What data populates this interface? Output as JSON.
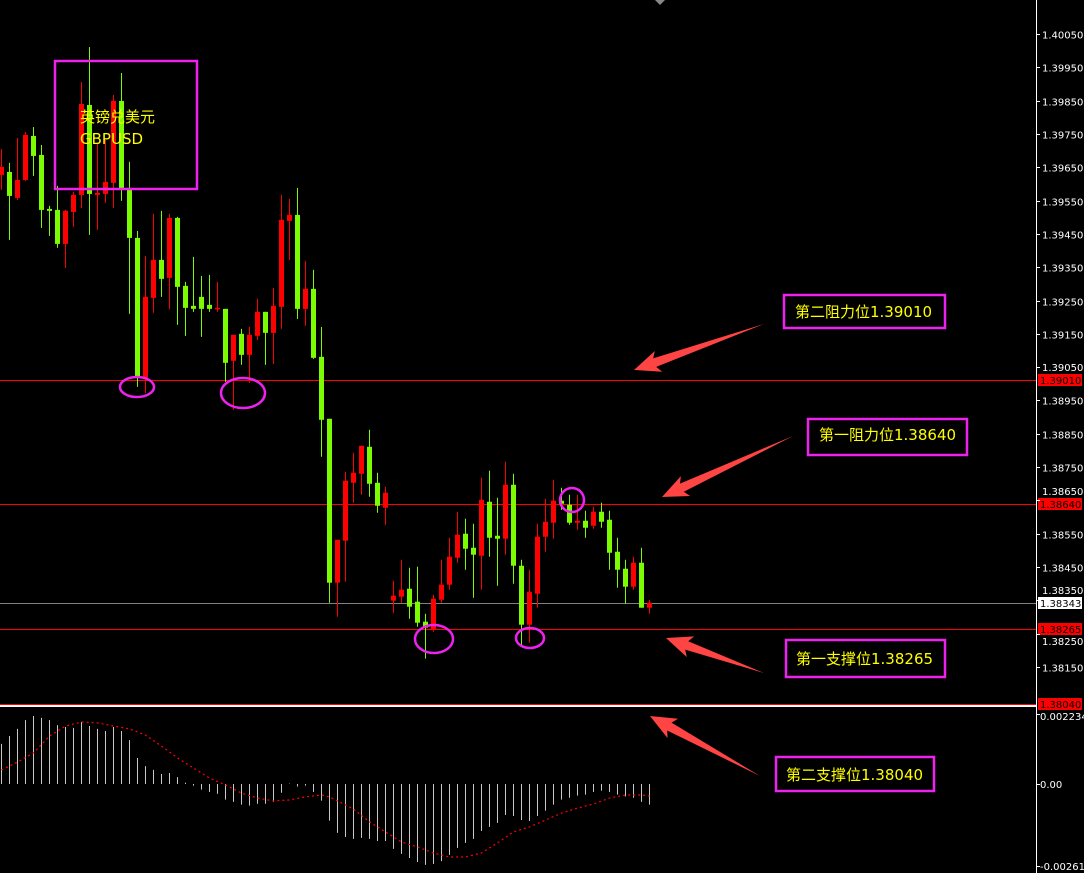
{
  "symbol": {
    "name_cn": "英镑兑美元",
    "ticker": "GBPUSD"
  },
  "colors": {
    "background": "#000000",
    "bull_candle": "#ff0000",
    "bear_candle": "#7cfc00",
    "annotation_box": "#ee22ee",
    "annotation_text": "#ffff00",
    "arrow": "#ff4444",
    "level_line": "#ff0000",
    "current_price_line": "#808080",
    "macd_histogram": "#c8c8c8",
    "macd_signal": "#ff0000"
  },
  "annotations": [
    {
      "text": "第二阻力位1.39010",
      "level": 1.3901
    },
    {
      "text": "第一阻力位1.38640",
      "level": 1.3864
    },
    {
      "text": "第一支撑位1.38265",
      "level": 1.38265
    },
    {
      "text": "第二支撑位1.38040",
      "level": 1.3804
    }
  ],
  "chart_data": [
    {
      "type": "candlestick",
      "title": "",
      "grid": false,
      "ylim": [
        1.3804,
        1.4007
      ],
      "y_ticks": [
        "1.40050",
        "1.39950",
        "1.39850",
        "1.39750",
        "1.39650",
        "1.39550",
        "1.39450",
        "1.39350",
        "1.39250",
        "1.39150",
        "1.39050",
        "1.38950",
        "1.38850",
        "1.38750",
        "1.38650",
        "1.38550",
        "1.38450",
        "1.38350",
        "1.38250",
        "1.38150"
      ],
      "price_tags": [
        {
          "value": "1.39010",
          "style": "level"
        },
        {
          "value": "1.38640",
          "style": "level"
        },
        {
          "value": "1.38343",
          "style": "current"
        },
        {
          "value": "1.38265",
          "style": "level"
        },
        {
          "value": "1.38040",
          "style": "level"
        }
      ],
      "horizontal_lines": [
        {
          "price": 1.3901,
          "kind": "level"
        },
        {
          "price": 1.3864,
          "kind": "level"
        },
        {
          "price": 1.38343,
          "kind": "current"
        },
        {
          "price": 1.38265,
          "kind": "level"
        },
        {
          "price": 1.3804,
          "kind": "level"
        }
      ],
      "ohlc_fields": [
        "open",
        "high",
        "low",
        "close"
      ],
      "ohlc": [
        [
          1.39627,
          1.39705,
          1.39582,
          1.39651
        ],
        [
          1.39636,
          1.39663,
          1.39432,
          1.39564
        ],
        [
          1.39558,
          1.39738,
          1.39552,
          1.39612
        ],
        [
          1.39612,
          1.39756,
          1.39609,
          1.39747
        ],
        [
          1.39744,
          1.39771,
          1.39624,
          1.39684
        ],
        [
          1.39687,
          1.39717,
          1.39468,
          1.39522
        ],
        [
          1.39525,
          1.39534,
          1.39444,
          1.39519
        ],
        [
          1.39522,
          1.39594,
          1.39408,
          1.3942
        ],
        [
          1.3942,
          1.39522,
          1.39348,
          1.39519
        ],
        [
          1.39516,
          1.39576,
          1.39471,
          1.39567
        ],
        [
          1.39567,
          1.39906,
          1.39528,
          1.3984
        ],
        [
          1.39837,
          1.40011,
          1.39447,
          1.3957
        ],
        [
          1.39567,
          1.39723,
          1.39462,
          1.39573
        ],
        [
          1.3957,
          1.39732,
          1.39543,
          1.39606
        ],
        [
          1.39603,
          1.39867,
          1.39528,
          1.39849
        ],
        [
          1.39849,
          1.39933,
          1.39549,
          1.39588
        ],
        [
          1.39588,
          1.39666,
          1.3921,
          1.39438
        ],
        [
          1.39438,
          1.39459,
          1.38991,
          1.39021
        ],
        [
          1.39018,
          1.39384,
          1.38973,
          1.39261
        ],
        [
          1.39258,
          1.3951,
          1.39213,
          1.39372
        ],
        [
          1.39372,
          1.39519,
          1.39261,
          1.39315
        ],
        [
          1.39318,
          1.3951,
          1.39225,
          1.39498
        ],
        [
          1.39498,
          1.39501,
          1.39177,
          1.39291
        ],
        [
          1.39294,
          1.39306,
          1.39144,
          1.39228
        ],
        [
          1.39234,
          1.39381,
          1.39216,
          1.39225
        ],
        [
          1.39261,
          1.39324,
          1.39141,
          1.39225
        ],
        [
          1.39237,
          1.39327,
          1.39216,
          1.39225
        ],
        [
          1.39225,
          1.39306,
          1.39216,
          1.39228
        ],
        [
          1.39225,
          1.39225,
          1.39006,
          1.39063
        ],
        [
          1.39069,
          1.39147,
          1.38922,
          1.39147
        ],
        [
          1.3915,
          1.39165,
          1.39057,
          1.39087
        ],
        [
          1.39087,
          1.39171,
          1.39003,
          1.39147
        ],
        [
          1.39144,
          1.39255,
          1.39132,
          1.39216
        ],
        [
          1.39216,
          1.39216,
          1.39057,
          1.39153
        ],
        [
          1.39153,
          1.39288,
          1.3906,
          1.39234
        ],
        [
          1.39231,
          1.39567,
          1.39165,
          1.39492
        ],
        [
          1.39489,
          1.39555,
          1.39372,
          1.39507
        ],
        [
          1.39507,
          1.39588,
          1.39195,
          1.39225
        ],
        [
          1.39225,
          1.39369,
          1.39174,
          1.39285
        ],
        [
          1.39285,
          1.39342,
          1.39075,
          1.39078
        ],
        [
          1.39081,
          1.39171,
          1.38781,
          1.38892
        ],
        [
          1.38895,
          1.38895,
          1.38343,
          1.38403
        ],
        [
          1.38403,
          1.38532,
          1.38301,
          1.38532
        ],
        [
          1.38529,
          1.38736,
          1.38406,
          1.38709
        ],
        [
          1.38703,
          1.38793,
          1.38643,
          1.38733
        ],
        [
          1.3873,
          1.38814,
          1.38667,
          1.38814
        ],
        [
          1.38811,
          1.38862,
          1.38661,
          1.387
        ],
        [
          1.38703,
          1.38733,
          1.38613,
          1.38634
        ],
        [
          1.38628,
          1.38691,
          1.38577,
          1.38673
        ],
        [
          1.38349,
          1.38409,
          1.38313,
          1.38364
        ],
        [
          1.38361,
          1.38472,
          1.38343,
          1.38382
        ],
        [
          1.38385,
          1.38448,
          1.38295,
          1.38331
        ],
        [
          1.38346,
          1.38451,
          1.38271,
          1.38283
        ],
        [
          1.38286,
          1.3831,
          1.38175,
          1.38268
        ],
        [
          1.38262,
          1.38367,
          1.38256,
          1.38355
        ],
        [
          1.38352,
          1.38472,
          1.38343,
          1.38397
        ],
        [
          1.38397,
          1.38538,
          1.38382,
          1.38481
        ],
        [
          1.38478,
          1.38616,
          1.38463,
          1.38547
        ],
        [
          1.3855,
          1.38595,
          1.38442,
          1.38505
        ],
        [
          1.38508,
          1.3858,
          1.38358,
          1.38487
        ],
        [
          1.38484,
          1.38718,
          1.38382,
          1.38652
        ],
        [
          1.38646,
          1.38739,
          1.38481,
          1.38538
        ],
        [
          1.38544,
          1.38658,
          1.38394,
          1.38535
        ],
        [
          1.38535,
          1.38766,
          1.38487,
          1.38697
        ],
        [
          1.38697,
          1.3873,
          1.384,
          1.38454
        ],
        [
          1.38454,
          1.38472,
          1.38214,
          1.38277
        ],
        [
          1.38277,
          1.38442,
          1.38223,
          1.38376
        ],
        [
          1.3837,
          1.3858,
          1.38328,
          1.38541
        ],
        [
          1.38541,
          1.38655,
          1.38496,
          1.38586
        ],
        [
          1.38583,
          1.38712,
          1.38535,
          1.38649
        ],
        [
          1.38649,
          1.38688,
          1.38622,
          1.3864
        ],
        [
          1.38637,
          1.38667,
          1.38577,
          1.38583
        ],
        [
          1.38583,
          1.38667,
          1.38562,
          1.38589
        ],
        [
          1.38589,
          1.38619,
          1.38538,
          1.38568
        ],
        [
          1.38574,
          1.38631,
          1.38565,
          1.38616
        ],
        [
          1.38616,
          1.38643,
          1.38568,
          1.38586
        ],
        [
          1.38592,
          1.38619,
          1.38442,
          1.38493
        ],
        [
          1.38496,
          1.38538,
          1.38388,
          1.38442
        ],
        [
          1.38445,
          1.38472,
          1.3834,
          1.38391
        ],
        [
          1.38391,
          1.38481,
          1.38382,
          1.38463
        ],
        [
          1.38463,
          1.38508,
          1.38328,
          1.38328
        ],
        [
          1.38328,
          1.38352,
          1.3831,
          1.38343
        ]
      ]
    },
    {
      "type": "bar",
      "title": "",
      "grid": false,
      "ylim": [
        -0.00261,
        0.002234
      ],
      "y_ticks": [
        "0.002234",
        "0.00",
        "-0.00261"
      ],
      "histogram": [
        0.00128,
        0.00153,
        0.00176,
        0.00204,
        0.00217,
        0.00211,
        0.00204,
        0.00188,
        0.00182,
        0.00179,
        0.00198,
        0.00185,
        0.00176,
        0.00169,
        0.00182,
        0.00169,
        0.0014,
        0.00083,
        0.00057,
        0.00045,
        0.00032,
        0.00035,
        0.00022,
        4e-05,
        -5e-05,
        -0.00018,
        -0.00025,
        -0.00031,
        -0.0005,
        -0.00057,
        -0.00066,
        -0.00069,
        -0.00063,
        -0.00063,
        -0.00057,
        -0.00028,
        1e-05,
        -8e-05,
        -5e-05,
        -0.00025,
        -0.00053,
        -0.00117,
        -0.00156,
        -0.00169,
        -0.00175,
        -0.00172,
        -0.00175,
        -0.00182,
        -0.00182,
        -0.00207,
        -0.00223,
        -0.00236,
        -0.00249,
        -0.00258,
        -0.00255,
        -0.00246,
        -0.00226,
        -0.00204,
        -0.00188,
        -0.00175,
        -0.0015,
        -0.00137,
        -0.00124,
        -0.00099,
        -0.00102,
        -0.00115,
        -0.00118,
        -0.00102,
        -0.00085,
        -0.00066,
        -0.0005,
        -0.00044,
        -0.00037,
        -0.00034,
        -0.00025,
        -0.00021,
        -0.00025,
        -0.00034,
        -0.0004,
        -0.00044,
        -0.00057,
        -0.00066
      ],
      "signal": {
        "bar_index": [
          1,
          3,
          5,
          7,
          9,
          11,
          13,
          15,
          17,
          19,
          21,
          23,
          25,
          27,
          29,
          31,
          33,
          35,
          37,
          39,
          41,
          42,
          43,
          45,
          47,
          49,
          51,
          53,
          55,
          57,
          59,
          61,
          63,
          65,
          67,
          69,
          71,
          73,
          75,
          77,
          79,
          81,
          82
        ],
        "values": [
          0.00045,
          0.0007,
          0.00099,
          0.00153,
          0.00185,
          0.00198,
          0.00195,
          0.00185,
          0.00176,
          0.00156,
          0.00121,
          0.00083,
          0.00051,
          0.00019,
          -3e-05,
          -0.00029,
          -0.00045,
          -0.00054,
          -0.00051,
          -0.00041,
          -0.00035,
          -0.00041,
          -0.00054,
          -0.0008,
          -0.00121,
          -0.00153,
          -0.00185,
          -0.00201,
          -0.0022,
          -0.00233,
          -0.00233,
          -0.0022,
          -0.00188,
          -0.00153,
          -0.00137,
          -0.00115,
          -0.00093,
          -0.00077,
          -0.00064,
          -0.00045,
          -0.00035,
          -0.00035,
          -0.00038
        ]
      }
    }
  ]
}
